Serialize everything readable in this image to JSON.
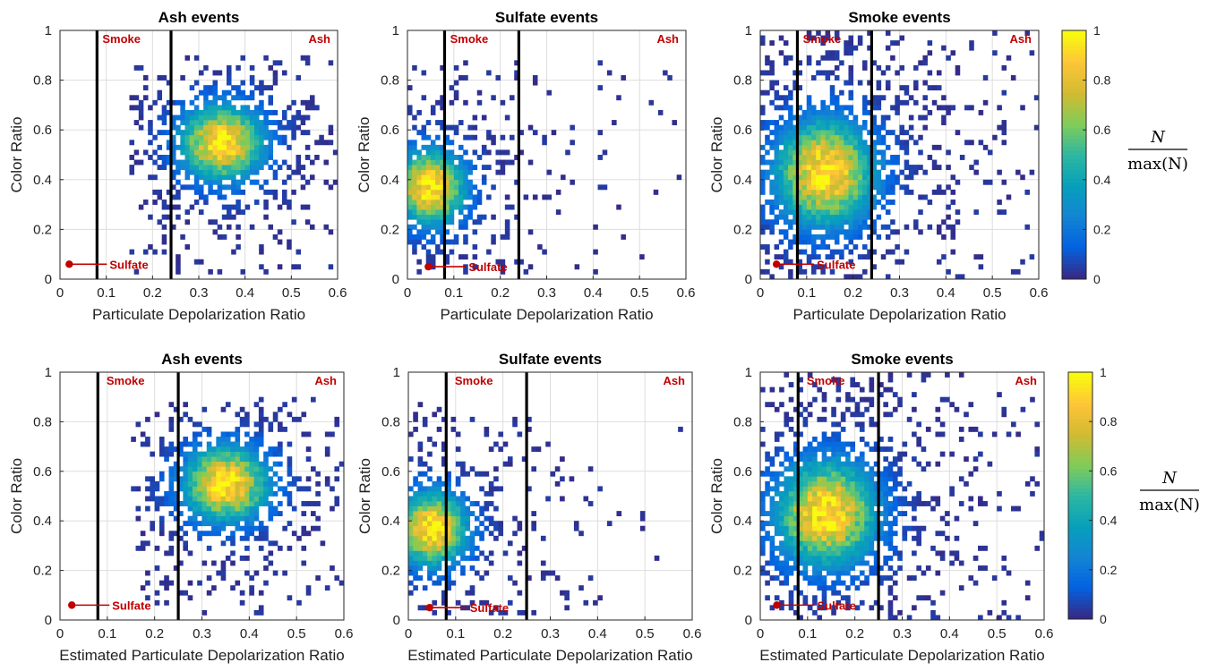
{
  "colors": {
    "boundary_line": "#000000",
    "annotation": "#c00000",
    "grid": "#dddddd",
    "colormap": "parula"
  },
  "colorbar": {
    "ticks": [
      "0",
      "0.2",
      "0.4",
      "0.6",
      "0.8",
      "1"
    ],
    "label_numerator": "N",
    "label_denominator": "max(N)"
  },
  "chart_data": [
    {
      "type": "heatmap",
      "title": "Ash events",
      "xlabel": "Particulate Depolarization Ratio",
      "ylabel": "Color Ratio",
      "xlim": [
        0,
        0.6
      ],
      "ylim": [
        0,
        1
      ],
      "xticks": [
        "0",
        "0.1",
        "0.2",
        "0.3",
        "0.4",
        "0.5",
        "0.6"
      ],
      "yticks": [
        "0",
        "0.2",
        "0.4",
        "0.6",
        "0.8",
        "1"
      ],
      "boundaries": [
        0.08,
        0.24
      ],
      "regions": [
        "Smoke",
        "Ash",
        "Sulfate"
      ],
      "sulfate_marker": {
        "x": 0.02,
        "y": 0.06
      },
      "peak": {
        "x": 0.35,
        "y": 0.55
      },
      "spread": {
        "x": 0.06,
        "y": 0.1
      },
      "extent": {
        "x": [
          0.15,
          0.6
        ],
        "y": [
          0.03,
          0.9
        ]
      },
      "density": 0.8
    },
    {
      "type": "heatmap",
      "title": "Sulfate events",
      "xlabel": "Particulate Depolarization Ratio",
      "ylabel": "Color Ratio",
      "xlim": [
        0,
        0.6
      ],
      "ylim": [
        0,
        1
      ],
      "xticks": [
        "0",
        "0.1",
        "0.2",
        "0.3",
        "0.4",
        "0.5",
        "0.6"
      ],
      "yticks": [
        "0",
        "0.2",
        "0.4",
        "0.6",
        "0.8",
        "1"
      ],
      "boundaries": [
        0.08,
        0.24
      ],
      "regions": [
        "Smoke",
        "Ash",
        "Sulfate"
      ],
      "sulfate_marker": {
        "x": 0.045,
        "y": 0.05
      },
      "peak": {
        "x": 0.05,
        "y": 0.37
      },
      "spread": {
        "x": 0.05,
        "y": 0.1
      },
      "extent": {
        "x": [
          0,
          0.6
        ],
        "y": [
          0.03,
          0.88
        ]
      },
      "density": 0.75
    },
    {
      "type": "heatmap",
      "title": "Smoke events",
      "xlabel": "Particulate Depolarization Ratio",
      "ylabel": "Color Ratio",
      "xlim": [
        0,
        0.6
      ],
      "ylim": [
        0,
        1
      ],
      "xticks": [
        "0",
        "0.1",
        "0.2",
        "0.3",
        "0.4",
        "0.5",
        "0.6"
      ],
      "yticks": [
        "0",
        "0.2",
        "0.4",
        "0.6",
        "0.8",
        "1"
      ],
      "boundaries": [
        0.08,
        0.24
      ],
      "regions": [
        "Smoke",
        "Ash",
        "Sulfate"
      ],
      "sulfate_marker": {
        "x": 0.035,
        "y": 0.06
      },
      "peak": {
        "x": 0.14,
        "y": 0.43
      },
      "spread": {
        "x": 0.07,
        "y": 0.14
      },
      "extent": {
        "x": [
          0,
          0.6
        ],
        "y": [
          0,
          1
        ]
      },
      "density": 0.95
    },
    {
      "type": "heatmap",
      "title": "Ash events",
      "xlabel": "Estimated Particulate Depolarization Ratio",
      "ylabel": "Color Ratio",
      "xlim": [
        0,
        0.6
      ],
      "ylim": [
        0,
        1
      ],
      "xticks": [
        "0",
        "0.1",
        "0.2",
        "0.3",
        "0.4",
        "0.5",
        "0.6"
      ],
      "yticks": [
        "0",
        "0.2",
        "0.4",
        "0.6",
        "0.8",
        "1"
      ],
      "boundaries": [
        0.08,
        0.25
      ],
      "regions": [
        "Smoke",
        "Ash",
        "Sulfate"
      ],
      "sulfate_marker": {
        "x": 0.025,
        "y": 0.06
      },
      "peak": {
        "x": 0.35,
        "y": 0.55
      },
      "spread": {
        "x": 0.06,
        "y": 0.1
      },
      "extent": {
        "x": [
          0.15,
          0.6
        ],
        "y": [
          0.03,
          0.9
        ]
      },
      "density": 0.8
    },
    {
      "type": "heatmap",
      "title": "Sulfate events",
      "xlabel": "Estimated Particulate Depolarization Ratio",
      "ylabel": "Color Ratio",
      "xlim": [
        0,
        0.6
      ],
      "ylim": [
        0,
        1
      ],
      "xticks": [
        "0",
        "0.1",
        "0.2",
        "0.3",
        "0.4",
        "0.5",
        "0.6"
      ],
      "yticks": [
        "0",
        "0.2",
        "0.4",
        "0.6",
        "0.8",
        "1"
      ],
      "boundaries": [
        0.08,
        0.25
      ],
      "regions": [
        "Smoke",
        "Ash",
        "Sulfate"
      ],
      "sulfate_marker": {
        "x": 0.045,
        "y": 0.05
      },
      "peak": {
        "x": 0.05,
        "y": 0.37
      },
      "spread": {
        "x": 0.05,
        "y": 0.1
      },
      "extent": {
        "x": [
          0,
          0.6
        ],
        "y": [
          0.03,
          0.88
        ]
      },
      "density": 0.75
    },
    {
      "type": "heatmap",
      "title": "Smoke events",
      "xlabel": "Estimated Particulate Depolarization Ratio",
      "ylabel": "Color Ratio",
      "xlim": [
        0,
        0.6
      ],
      "ylim": [
        0,
        1
      ],
      "xticks": [
        "0",
        "0.1",
        "0.2",
        "0.3",
        "0.4",
        "0.5",
        "0.6"
      ],
      "yticks": [
        "0",
        "0.2",
        "0.4",
        "0.6",
        "0.8",
        "1"
      ],
      "boundaries": [
        0.08,
        0.25
      ],
      "regions": [
        "Smoke",
        "Ash",
        "Sulfate"
      ],
      "sulfate_marker": {
        "x": 0.035,
        "y": 0.06
      },
      "peak": {
        "x": 0.14,
        "y": 0.43
      },
      "spread": {
        "x": 0.07,
        "y": 0.14
      },
      "extent": {
        "x": [
          0,
          0.6
        ],
        "y": [
          0,
          1
        ]
      },
      "density": 0.95
    }
  ]
}
